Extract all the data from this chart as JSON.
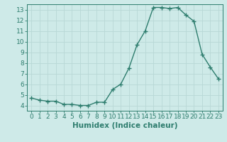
{
  "x": [
    0,
    1,
    2,
    3,
    4,
    5,
    6,
    7,
    8,
    9,
    10,
    11,
    12,
    13,
    14,
    15,
    16,
    17,
    18,
    19,
    20,
    21,
    22,
    23
  ],
  "y": [
    4.7,
    4.5,
    4.4,
    4.4,
    4.1,
    4.1,
    4.0,
    4.0,
    4.3,
    4.3,
    5.5,
    6.0,
    7.5,
    9.7,
    11.0,
    13.2,
    13.2,
    13.1,
    13.2,
    12.5,
    11.9,
    8.8,
    7.6,
    6.5
  ],
  "line_color": "#2e7d6e",
  "marker": "+",
  "bg_color": "#ceeae8",
  "grid_color": "#b8d8d6",
  "xlabel": "Humidex (Indice chaleur)",
  "xlim": [
    -0.5,
    23.5
  ],
  "ylim": [
    3.5,
    13.5
  ],
  "yticks": [
    4,
    5,
    6,
    7,
    8,
    9,
    10,
    11,
    12,
    13
  ],
  "xticks": [
    0,
    1,
    2,
    3,
    4,
    5,
    6,
    7,
    8,
    9,
    10,
    11,
    12,
    13,
    14,
    15,
    16,
    17,
    18,
    19,
    20,
    21,
    22,
    23
  ],
  "xlabel_fontsize": 7.5,
  "tick_fontsize": 6.5,
  "line_width": 1.0,
  "marker_size": 4
}
